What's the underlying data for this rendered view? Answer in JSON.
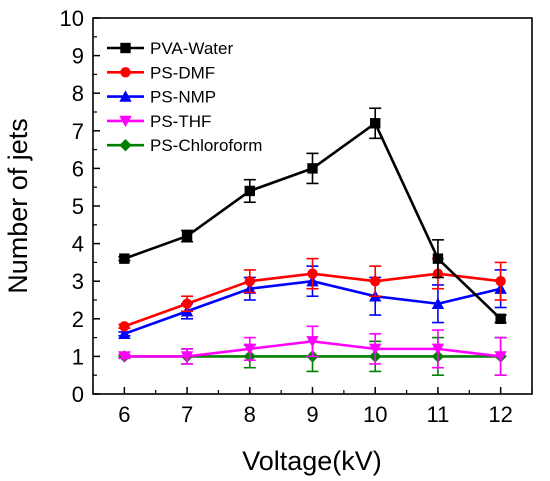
{
  "chart_data": {
    "type": "line",
    "title": "",
    "xlabel": "Voltage(kV)",
    "ylabel": "Number of jets",
    "x": [
      6,
      7,
      8,
      9,
      10,
      11,
      12
    ],
    "xlim": [
      5.5,
      12.5
    ],
    "ylim": [
      0,
      10
    ],
    "xticks": [
      6,
      7,
      8,
      9,
      10,
      11,
      12
    ],
    "yticks": [
      0,
      1,
      2,
      3,
      4,
      5,
      6,
      7,
      8,
      9,
      10
    ],
    "grid": false,
    "legend_position": "top-left",
    "series": [
      {
        "name": "PVA-Water",
        "color": "#000000",
        "marker": "square",
        "values": [
          3.6,
          4.2,
          5.4,
          6.0,
          7.2,
          3.6,
          2.0
        ],
        "errors": [
          0.05,
          0.15,
          0.3,
          0.4,
          0.4,
          0.5,
          0.1
        ]
      },
      {
        "name": "PS-DMF",
        "color": "#ff0000",
        "marker": "circle",
        "values": [
          1.8,
          2.4,
          3.0,
          3.2,
          3.0,
          3.2,
          3.0
        ],
        "errors": [
          0.05,
          0.2,
          0.3,
          0.4,
          0.4,
          0.4,
          0.5
        ]
      },
      {
        "name": "PS-NMP",
        "color": "#0000ff",
        "marker": "triangle-up",
        "values": [
          1.6,
          2.2,
          2.8,
          3.0,
          2.6,
          2.4,
          2.8
        ],
        "errors": [
          0.05,
          0.2,
          0.3,
          0.4,
          0.5,
          0.5,
          0.5
        ]
      },
      {
        "name": "PS-THF",
        "color": "#ff00ff",
        "marker": "triangle-down",
        "values": [
          1.0,
          1.0,
          1.2,
          1.4,
          1.2,
          1.2,
          1.0
        ],
        "errors": [
          0.05,
          0.2,
          0.3,
          0.4,
          0.4,
          0.5,
          0.5
        ]
      },
      {
        "name": "PS-Chloroform",
        "color": "#008000",
        "marker": "diamond",
        "values": [
          1.0,
          1.0,
          1.0,
          1.0,
          1.0,
          1.0,
          1.0
        ],
        "errors": [
          0.05,
          0.2,
          0.3,
          0.4,
          0.4,
          0.5,
          0.5
        ]
      }
    ]
  }
}
